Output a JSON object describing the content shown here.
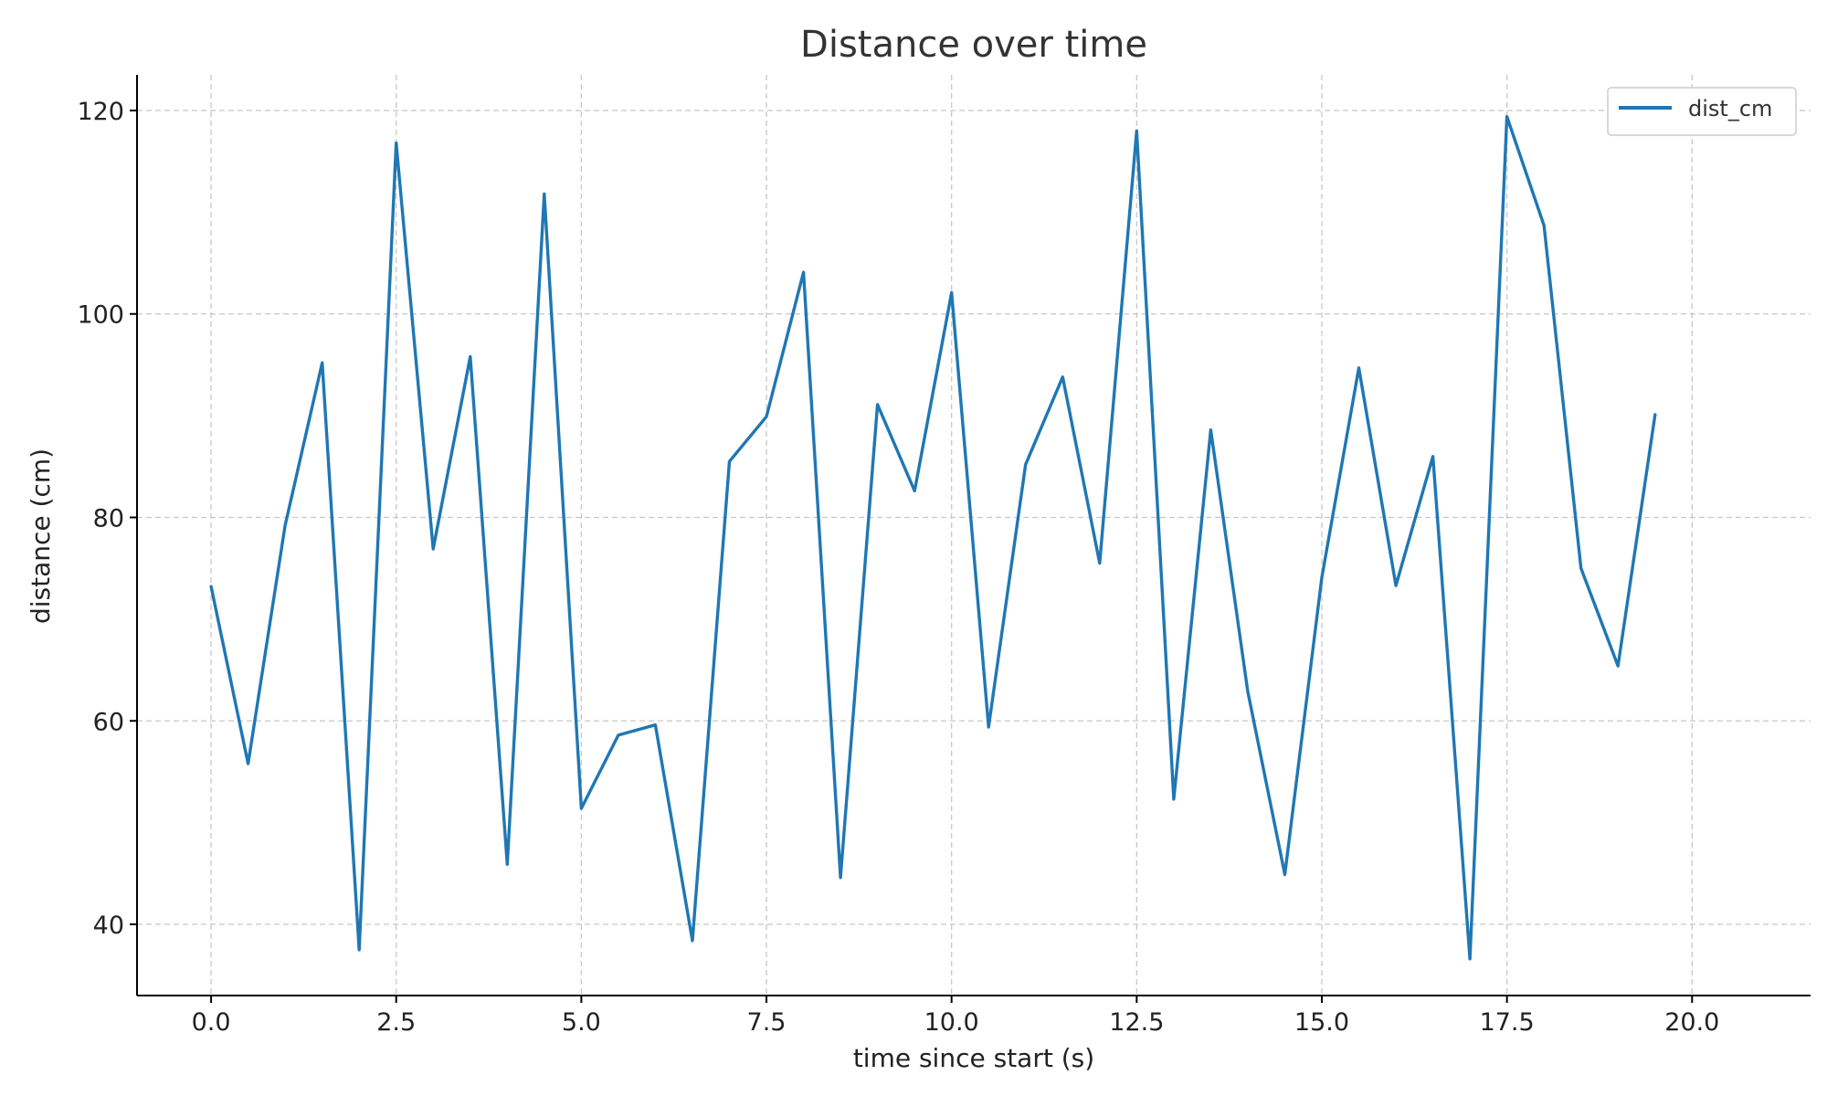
{
  "chart_data": {
    "type": "line",
    "title": "Distance over time",
    "xlabel": "time since start (s)",
    "ylabel": "distance (cm)",
    "xlim": [
      -1,
      21.6
    ],
    "ylim": [
      33,
      123.5
    ],
    "x_ticks": [
      0.0,
      2.5,
      5.0,
      7.5,
      10.0,
      12.5,
      15.0,
      17.5,
      20.0
    ],
    "x_tick_labels": [
      "0.0",
      "2.5",
      "5.0",
      "7.5",
      "10.0",
      "12.5",
      "15.0",
      "17.5",
      "20.0"
    ],
    "y_ticks": [
      40,
      60,
      80,
      100,
      120
    ],
    "y_tick_labels": [
      "40",
      "60",
      "80",
      "100",
      "120"
    ],
    "grid": true,
    "legend_position": "top-right",
    "series": [
      {
        "name": "dist_cm",
        "color": "#1f77b4",
        "x": [
          0.0,
          0.5,
          1.0,
          1.5,
          2.0,
          2.5,
          3.0,
          3.5,
          4.0,
          4.5,
          5.0,
          5.5,
          6.0,
          6.5,
          7.0,
          7.5,
          8.0,
          8.5,
          9.0,
          9.5,
          10.0,
          10.5,
          11.0,
          11.5,
          12.0,
          12.5,
          13.0,
          13.5,
          14.0,
          14.5,
          15.0,
          15.5,
          16.0,
          16.5,
          17.0,
          17.5,
          18.0,
          18.5,
          19.0,
          19.5
        ],
        "y": [
          73.2,
          55.8,
          79.2,
          95.2,
          37.5,
          116.8,
          76.9,
          95.8,
          45.9,
          111.8,
          51.4,
          58.6,
          59.6,
          38.4,
          85.5,
          89.9,
          104.1,
          44.6,
          91.1,
          82.6,
          102.1,
          59.4,
          85.2,
          93.8,
          75.5,
          118.0,
          52.3,
          88.6,
          62.9,
          44.9,
          74.1,
          94.7,
          73.3,
          86.0,
          36.6,
          119.4,
          108.7,
          75.0,
          65.4,
          90.1
        ]
      }
    ]
  }
}
